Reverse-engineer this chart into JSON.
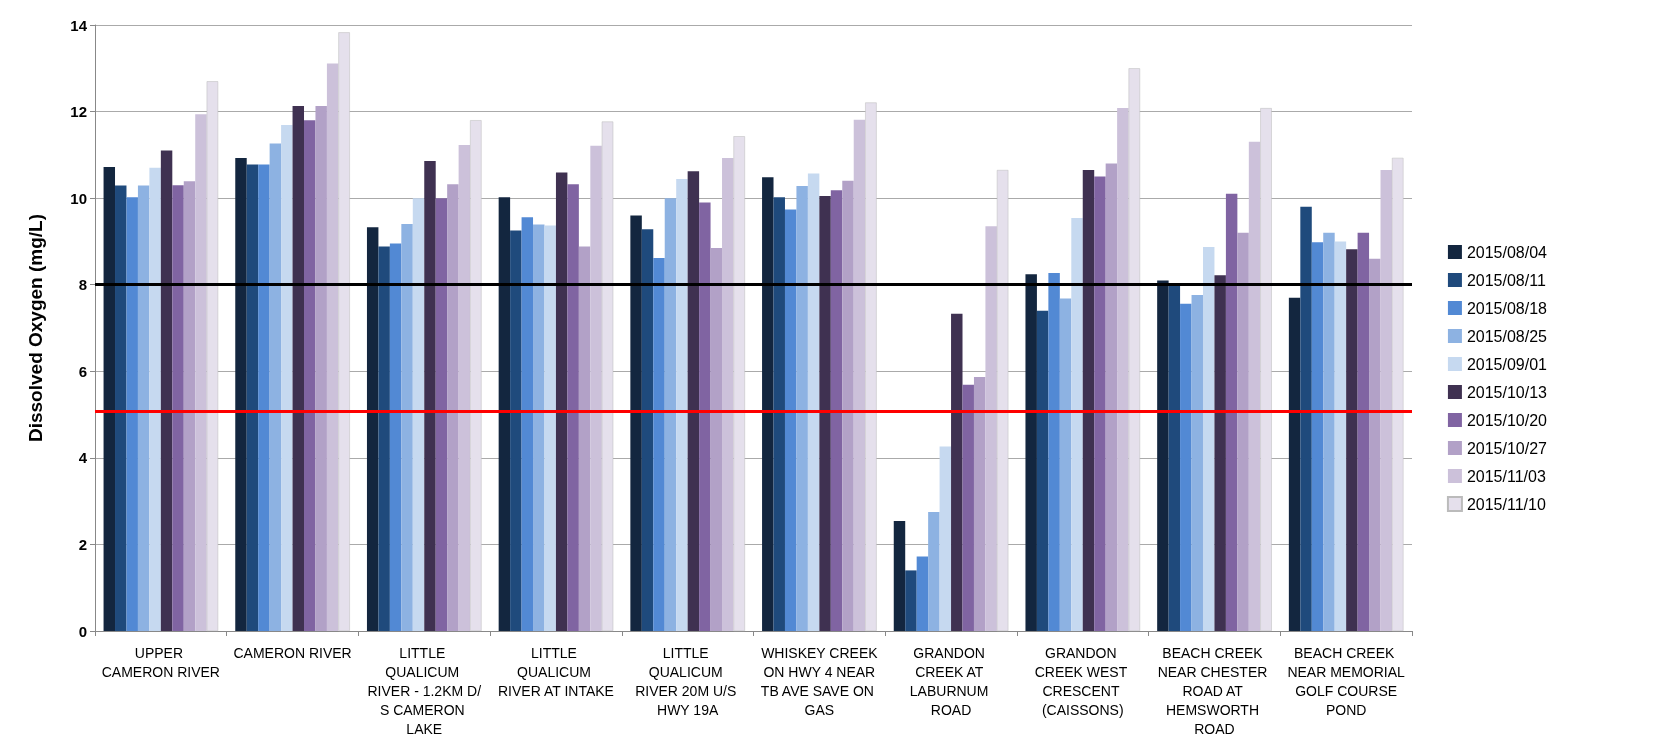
{
  "chart_data": {
    "type": "bar",
    "ylabel": "Dissolved Oxygen (mg/L)",
    "categories": [
      "UPPER CAMERON RIVER",
      "CAMERON RIVER",
      "LITTLE QUALICUM RIVER - 1.2KM D/S CAMERON LAKE",
      "LITTLE QUALICUM RIVER AT INTAKE",
      "LITTLE QUALICUM RIVER 20M U/S HWY 19A",
      "WHISKEY CREEK ON HWY 4 NEAR TB AVE SAVE ON GAS",
      "GRANDON CREEK AT LABURNUM ROAD",
      "GRANDON CREEK WEST CRESCENT (CAISSONS)",
      "BEACH CREEK NEAR CHESTER ROAD AT HEMSWORTH ROAD",
      "BEACH CREEK NEAR MEMORIAL GOLF COURSE POND"
    ],
    "series": [
      {
        "name": "2015/08/04",
        "color": "#13263f",
        "values": [
          10.72,
          10.93,
          9.33,
          10.02,
          9.6,
          10.48,
          2.54,
          8.24,
          8.1,
          7.7
        ]
      },
      {
        "name": "2015/08/11",
        "color": "#1f4a7c",
        "values": [
          10.29,
          10.78,
          8.88,
          9.25,
          9.28,
          10.02,
          1.4,
          7.4,
          8.0,
          9.8
        ]
      },
      {
        "name": "2015/08/18",
        "color": "#5289d4",
        "values": [
          10.02,
          10.78,
          8.95,
          9.56,
          8.62,
          9.74,
          1.72,
          8.27,
          7.56,
          8.98
        ]
      },
      {
        "name": "2015/08/25",
        "color": "#8db2e2",
        "values": [
          10.29,
          11.26,
          9.4,
          9.39,
          10.0,
          10.28,
          2.75,
          7.68,
          7.76,
          9.2
        ]
      },
      {
        "name": "2015/09/01",
        "color": "#c6d9f0",
        "values": [
          10.7,
          11.69,
          10.0,
          9.37,
          10.44,
          10.57,
          4.26,
          9.54,
          8.87,
          9.0
        ]
      },
      {
        "name": "2015/10/13",
        "color": "#3f3151",
        "values": [
          11.1,
          12.13,
          10.86,
          10.59,
          10.62,
          10.05,
          7.33,
          10.65,
          8.22,
          8.82
        ]
      },
      {
        "name": "2015/10/20",
        "color": "#8064a2",
        "values": [
          10.3,
          11.8,
          10.0,
          10.32,
          9.9,
          10.18,
          5.69,
          10.5,
          10.1,
          9.2
        ]
      },
      {
        "name": "2015/10/27",
        "color": "#b2a1c7",
        "values": [
          10.39,
          12.13,
          10.32,
          8.88,
          8.85,
          10.4,
          5.87,
          10.8,
          9.2,
          8.6
        ]
      },
      {
        "name": "2015/11/03",
        "color": "#ccc1da",
        "values": [
          11.94,
          13.11,
          11.23,
          11.21,
          10.93,
          11.81,
          9.35,
          12.08,
          11.3,
          10.65
        ]
      },
      {
        "name": "2015/11/10",
        "color": "#e5e0ec",
        "values": [
          12.7,
          13.83,
          11.8,
          11.77,
          11.43,
          12.21,
          10.65,
          13.0,
          12.08,
          10.93
        ]
      }
    ],
    "ylim": [
      0,
      14
    ],
    "yticks": [
      0,
      2,
      4,
      6,
      8,
      10,
      12,
      14
    ],
    "grid": "y",
    "legend": "right",
    "ref_lines": [
      {
        "axis": "y",
        "value": 8,
        "color": "#000000"
      },
      {
        "axis": "y",
        "value": 5.08,
        "color": "#ff0000"
      }
    ]
  }
}
